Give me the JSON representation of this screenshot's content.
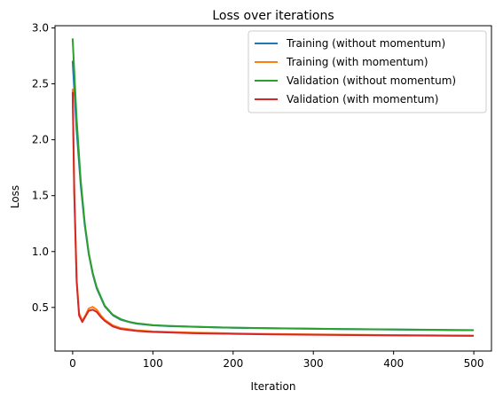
{
  "chart_data": {
    "type": "line",
    "title": "Loss over iterations",
    "xlabel": "Iteration",
    "ylabel": "Loss",
    "xlim": [
      -22,
      522
    ],
    "ylim": [
      0.11,
      3.02
    ],
    "x_ticks": [
      0,
      100,
      200,
      300,
      400,
      500
    ],
    "y_ticks": [
      0.5,
      1.0,
      1.5,
      2.0,
      2.5,
      3.0
    ],
    "x_tick_labels": [
      "0",
      "100",
      "200",
      "300",
      "400",
      "500"
    ],
    "y_tick_labels": [
      "0.5",
      "1.0",
      "1.5",
      "2.0",
      "2.5",
      "3.0"
    ],
    "grid": false,
    "legend_position": "top-right",
    "series": [
      {
        "name": "Training (without momentum)",
        "color": "#1f77b4",
        "x": [
          0,
          5,
          10,
          15,
          20,
          25,
          30,
          40,
          50,
          60,
          70,
          80,
          100,
          120,
          150,
          200,
          250,
          300,
          350,
          400,
          450,
          499
        ],
        "y": [
          2.7,
          2.08,
          1.6,
          1.24,
          0.98,
          0.8,
          0.67,
          0.51,
          0.43,
          0.39,
          0.37,
          0.355,
          0.34,
          0.333,
          0.327,
          0.318,
          0.313,
          0.309,
          0.305,
          0.302,
          0.299,
          0.296
        ]
      },
      {
        "name": "Training (with momentum)",
        "color": "#ff7f0e",
        "x": [
          0,
          2,
          5,
          8,
          12,
          16,
          20,
          25,
          30,
          35,
          40,
          50,
          60,
          80,
          100,
          150,
          200,
          250,
          300,
          350,
          400,
          450,
          499
        ],
        "y": [
          2.45,
          1.55,
          0.75,
          0.45,
          0.38,
          0.43,
          0.49,
          0.505,
          0.48,
          0.43,
          0.39,
          0.34,
          0.315,
          0.295,
          0.285,
          0.275,
          0.268,
          0.263,
          0.259,
          0.256,
          0.253,
          0.251,
          0.249
        ]
      },
      {
        "name": "Validation (without momentum)",
        "color": "#2ca02c",
        "x": [
          0,
          5,
          10,
          15,
          20,
          25,
          30,
          40,
          50,
          60,
          70,
          80,
          100,
          120,
          150,
          200,
          250,
          300,
          350,
          400,
          450,
          499
        ],
        "y": [
          2.9,
          2.18,
          1.64,
          1.26,
          0.99,
          0.81,
          0.68,
          0.515,
          0.435,
          0.395,
          0.372,
          0.358,
          0.342,
          0.335,
          0.328,
          0.319,
          0.314,
          0.31,
          0.306,
          0.303,
          0.3,
          0.297
        ]
      },
      {
        "name": "Validation (with momentum)",
        "color": "#d62728",
        "x": [
          0,
          2,
          5,
          8,
          12,
          16,
          20,
          25,
          30,
          35,
          40,
          50,
          60,
          80,
          100,
          150,
          200,
          250,
          300,
          350,
          400,
          450,
          499
        ],
        "y": [
          2.42,
          1.52,
          0.73,
          0.43,
          0.37,
          0.42,
          0.47,
          0.48,
          0.46,
          0.415,
          0.38,
          0.33,
          0.307,
          0.289,
          0.28,
          0.27,
          0.264,
          0.259,
          0.256,
          0.253,
          0.25,
          0.248,
          0.246
        ]
      }
    ]
  }
}
